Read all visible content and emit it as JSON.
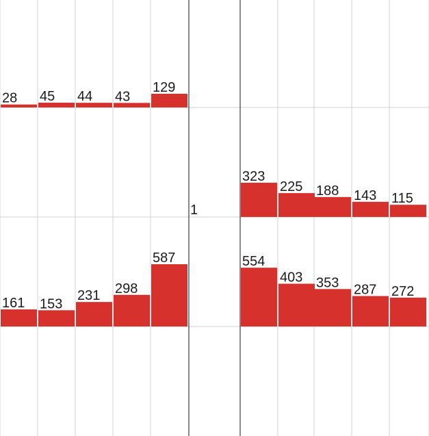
{
  "chart_data": {
    "type": "bar",
    "grid": true,
    "colors": {
      "bar": "#d7312e",
      "grid": "#d0d0d0",
      "grid_dark": "#555555",
      "background": "#ffffff"
    },
    "center_label": "1",
    "panels": [
      {
        "name": "upper-left",
        "values": [
          28,
          45,
          44,
          43,
          129
        ]
      },
      {
        "name": "upper-right",
        "values": [
          323,
          225,
          188,
          143,
          115
        ]
      },
      {
        "name": "lower-left",
        "values": [
          161,
          153,
          231,
          298,
          587
        ]
      },
      {
        "name": "lower-right",
        "values": [
          554,
          403,
          353,
          287,
          272
        ]
      }
    ]
  }
}
